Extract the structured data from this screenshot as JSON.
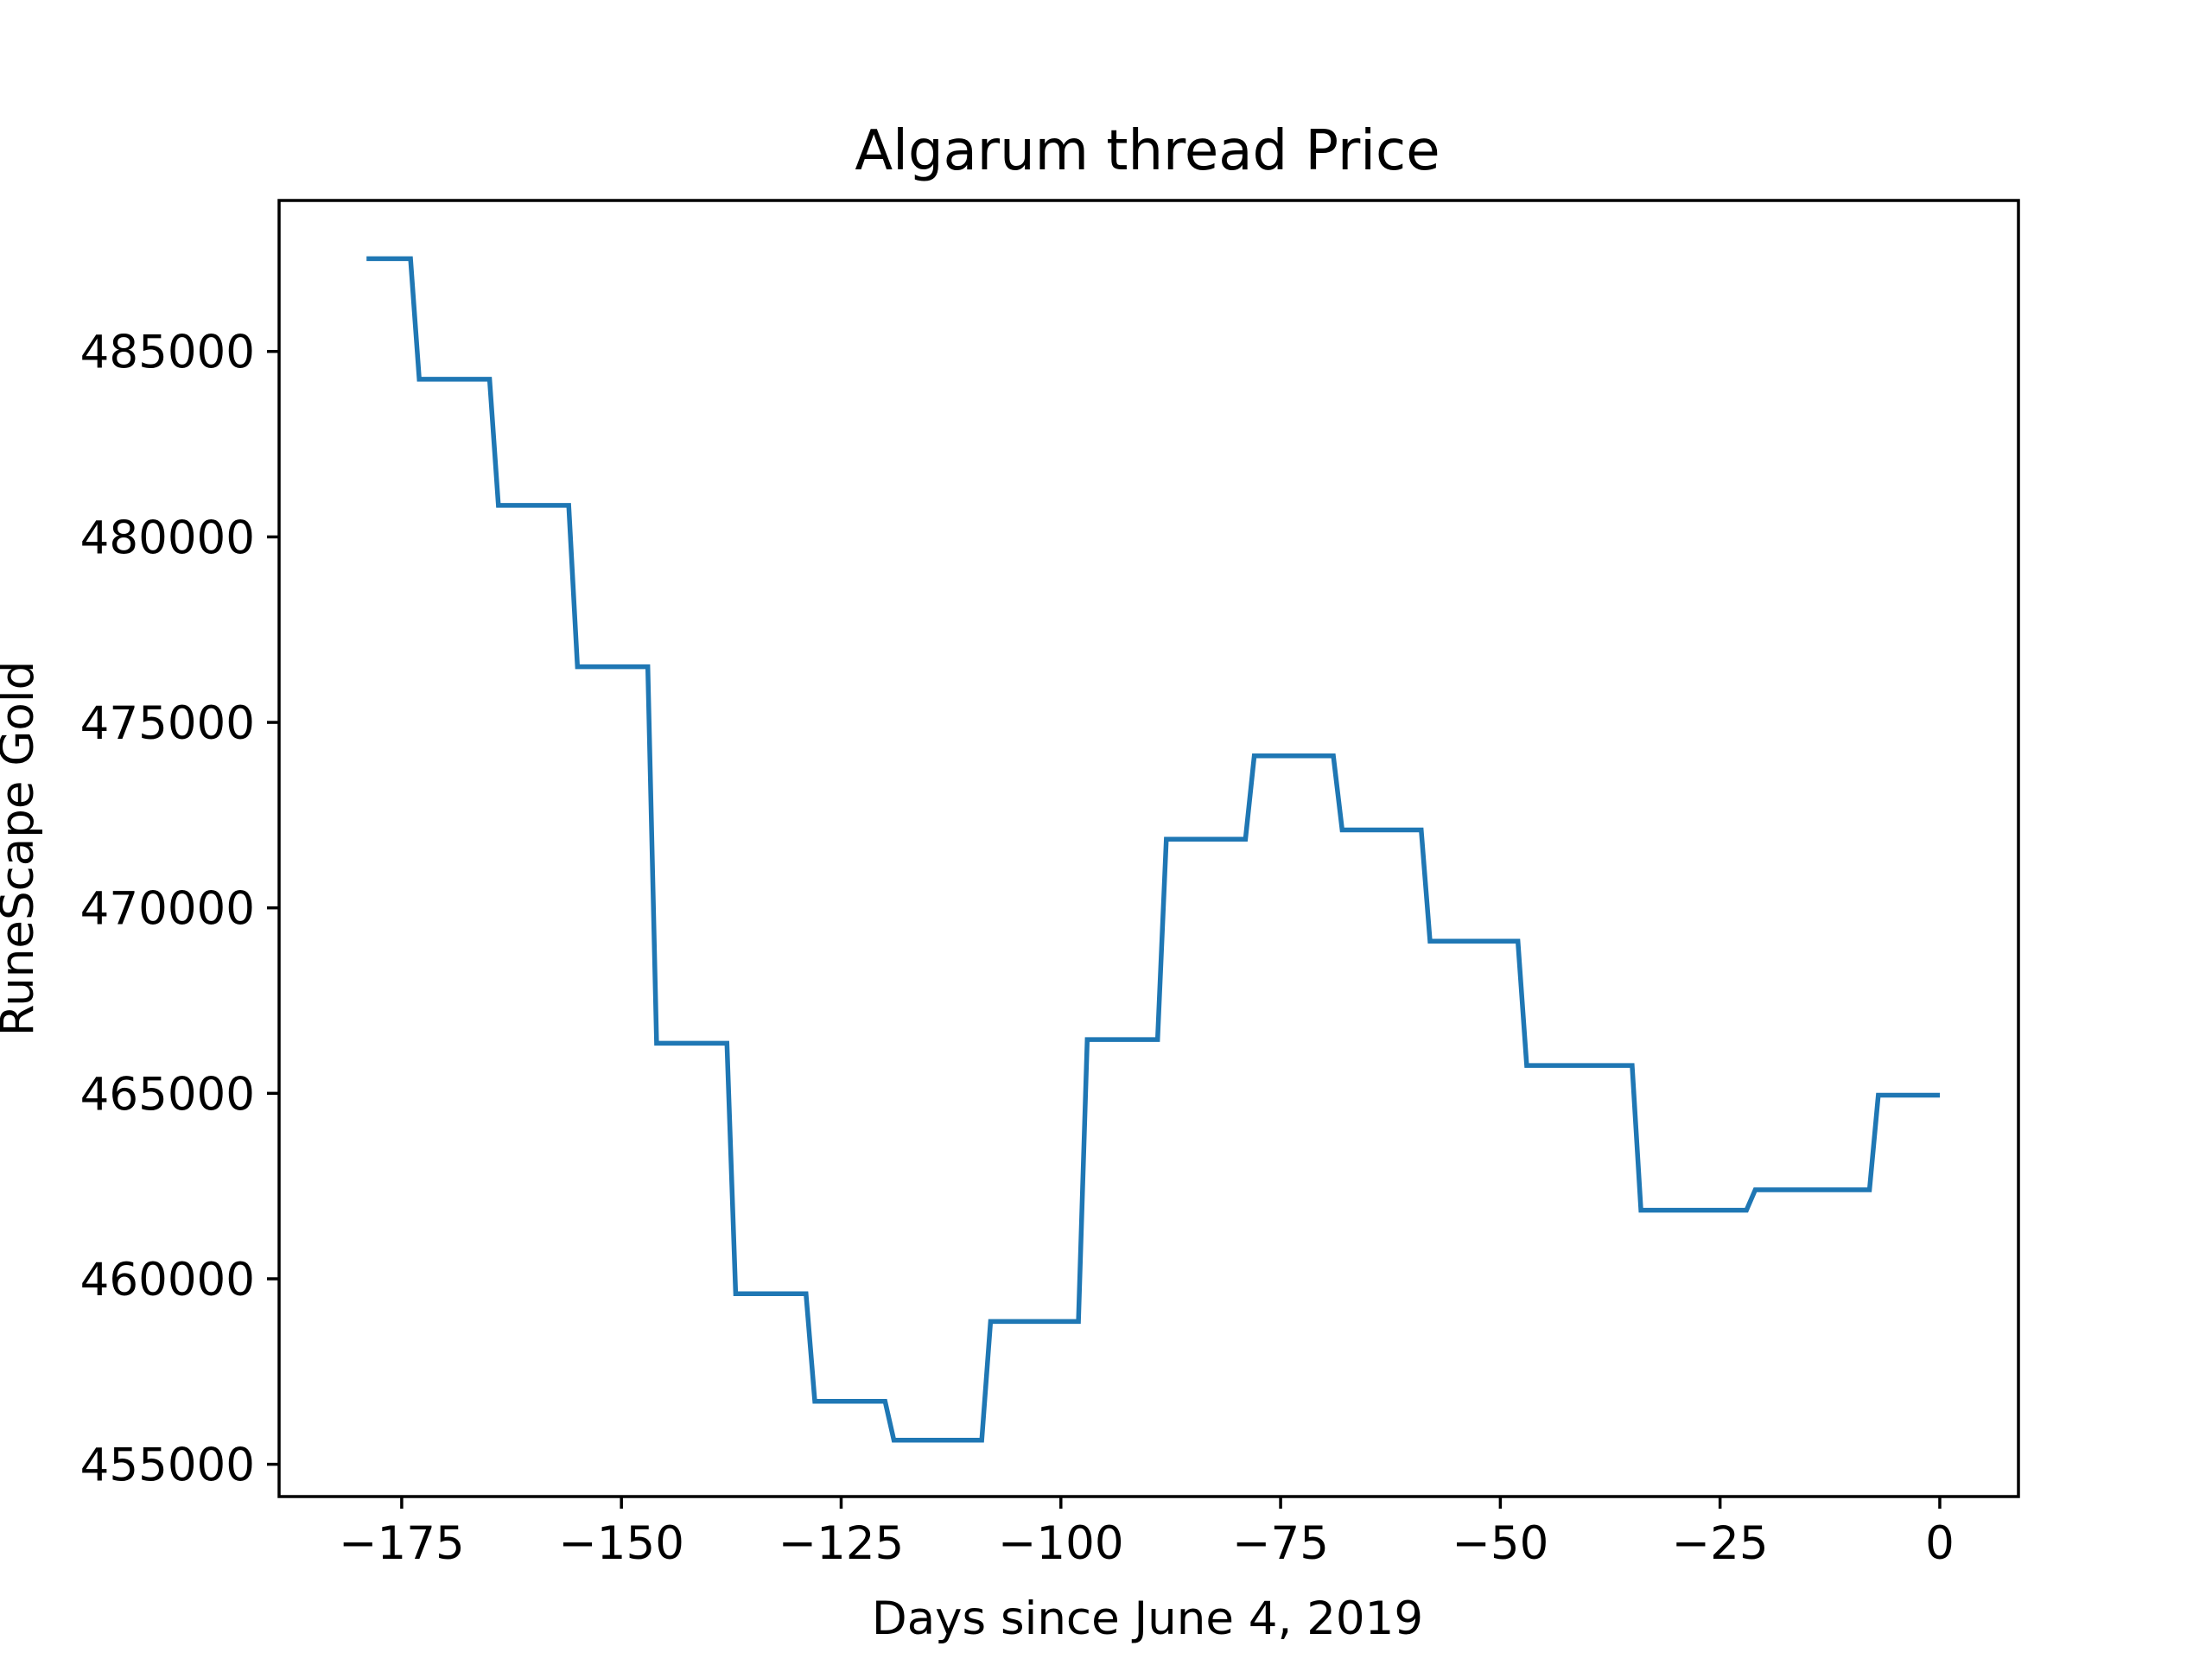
{
  "chart_data": {
    "type": "line",
    "title": "Algarum thread Price",
    "xlabel": "Days since June 4, 2019",
    "ylabel": "RuneScape Gold",
    "xlim": [
      -188.95,
      8.95
    ],
    "ylim": [
      454130,
      489070
    ],
    "x_ticks": [
      {
        "value": -175,
        "label": "−175"
      },
      {
        "value": -150,
        "label": "−150"
      },
      {
        "value": -125,
        "label": "−125"
      },
      {
        "value": -100,
        "label": "−100"
      },
      {
        "value": -75,
        "label": "−75"
      },
      {
        "value": -50,
        "label": "−50"
      },
      {
        "value": -25,
        "label": "−25"
      },
      {
        "value": 0,
        "label": "0"
      }
    ],
    "y_ticks": [
      {
        "value": 455000,
        "label": "455000"
      },
      {
        "value": 460000,
        "label": "460000"
      },
      {
        "value": 465000,
        "label": "465000"
      },
      {
        "value": 470000,
        "label": "470000"
      },
      {
        "value": 475000,
        "label": "475000"
      },
      {
        "value": 480000,
        "label": "480000"
      },
      {
        "value": 485000,
        "label": "485000"
      }
    ],
    "grid": false,
    "legend": "none",
    "series": [
      {
        "color": "#1f77b4",
        "x": [
          -179,
          -174,
          -173,
          -165,
          -164,
          -156,
          -155,
          -147,
          -146,
          -138,
          -137,
          -129,
          -128,
          -120,
          -119,
          -109,
          -108,
          -98,
          -97,
          -89,
          -88,
          -79,
          -78,
          -69,
          -68,
          -59,
          -58,
          -48,
          -47,
          -35,
          -34,
          -22,
          -21,
          -8,
          -7,
          0
        ],
        "y": [
          487500,
          487500,
          484250,
          484250,
          480850,
          480850,
          476500,
          476500,
          466350,
          466350,
          459600,
          459600,
          456700,
          456700,
          455650,
          455650,
          458850,
          458850,
          466450,
          466450,
          471850,
          471850,
          474100,
          474100,
          472100,
          472100,
          469100,
          469100,
          465750,
          465750,
          461850,
          461850,
          462400,
          462400,
          464950,
          464950
        ]
      }
    ]
  }
}
